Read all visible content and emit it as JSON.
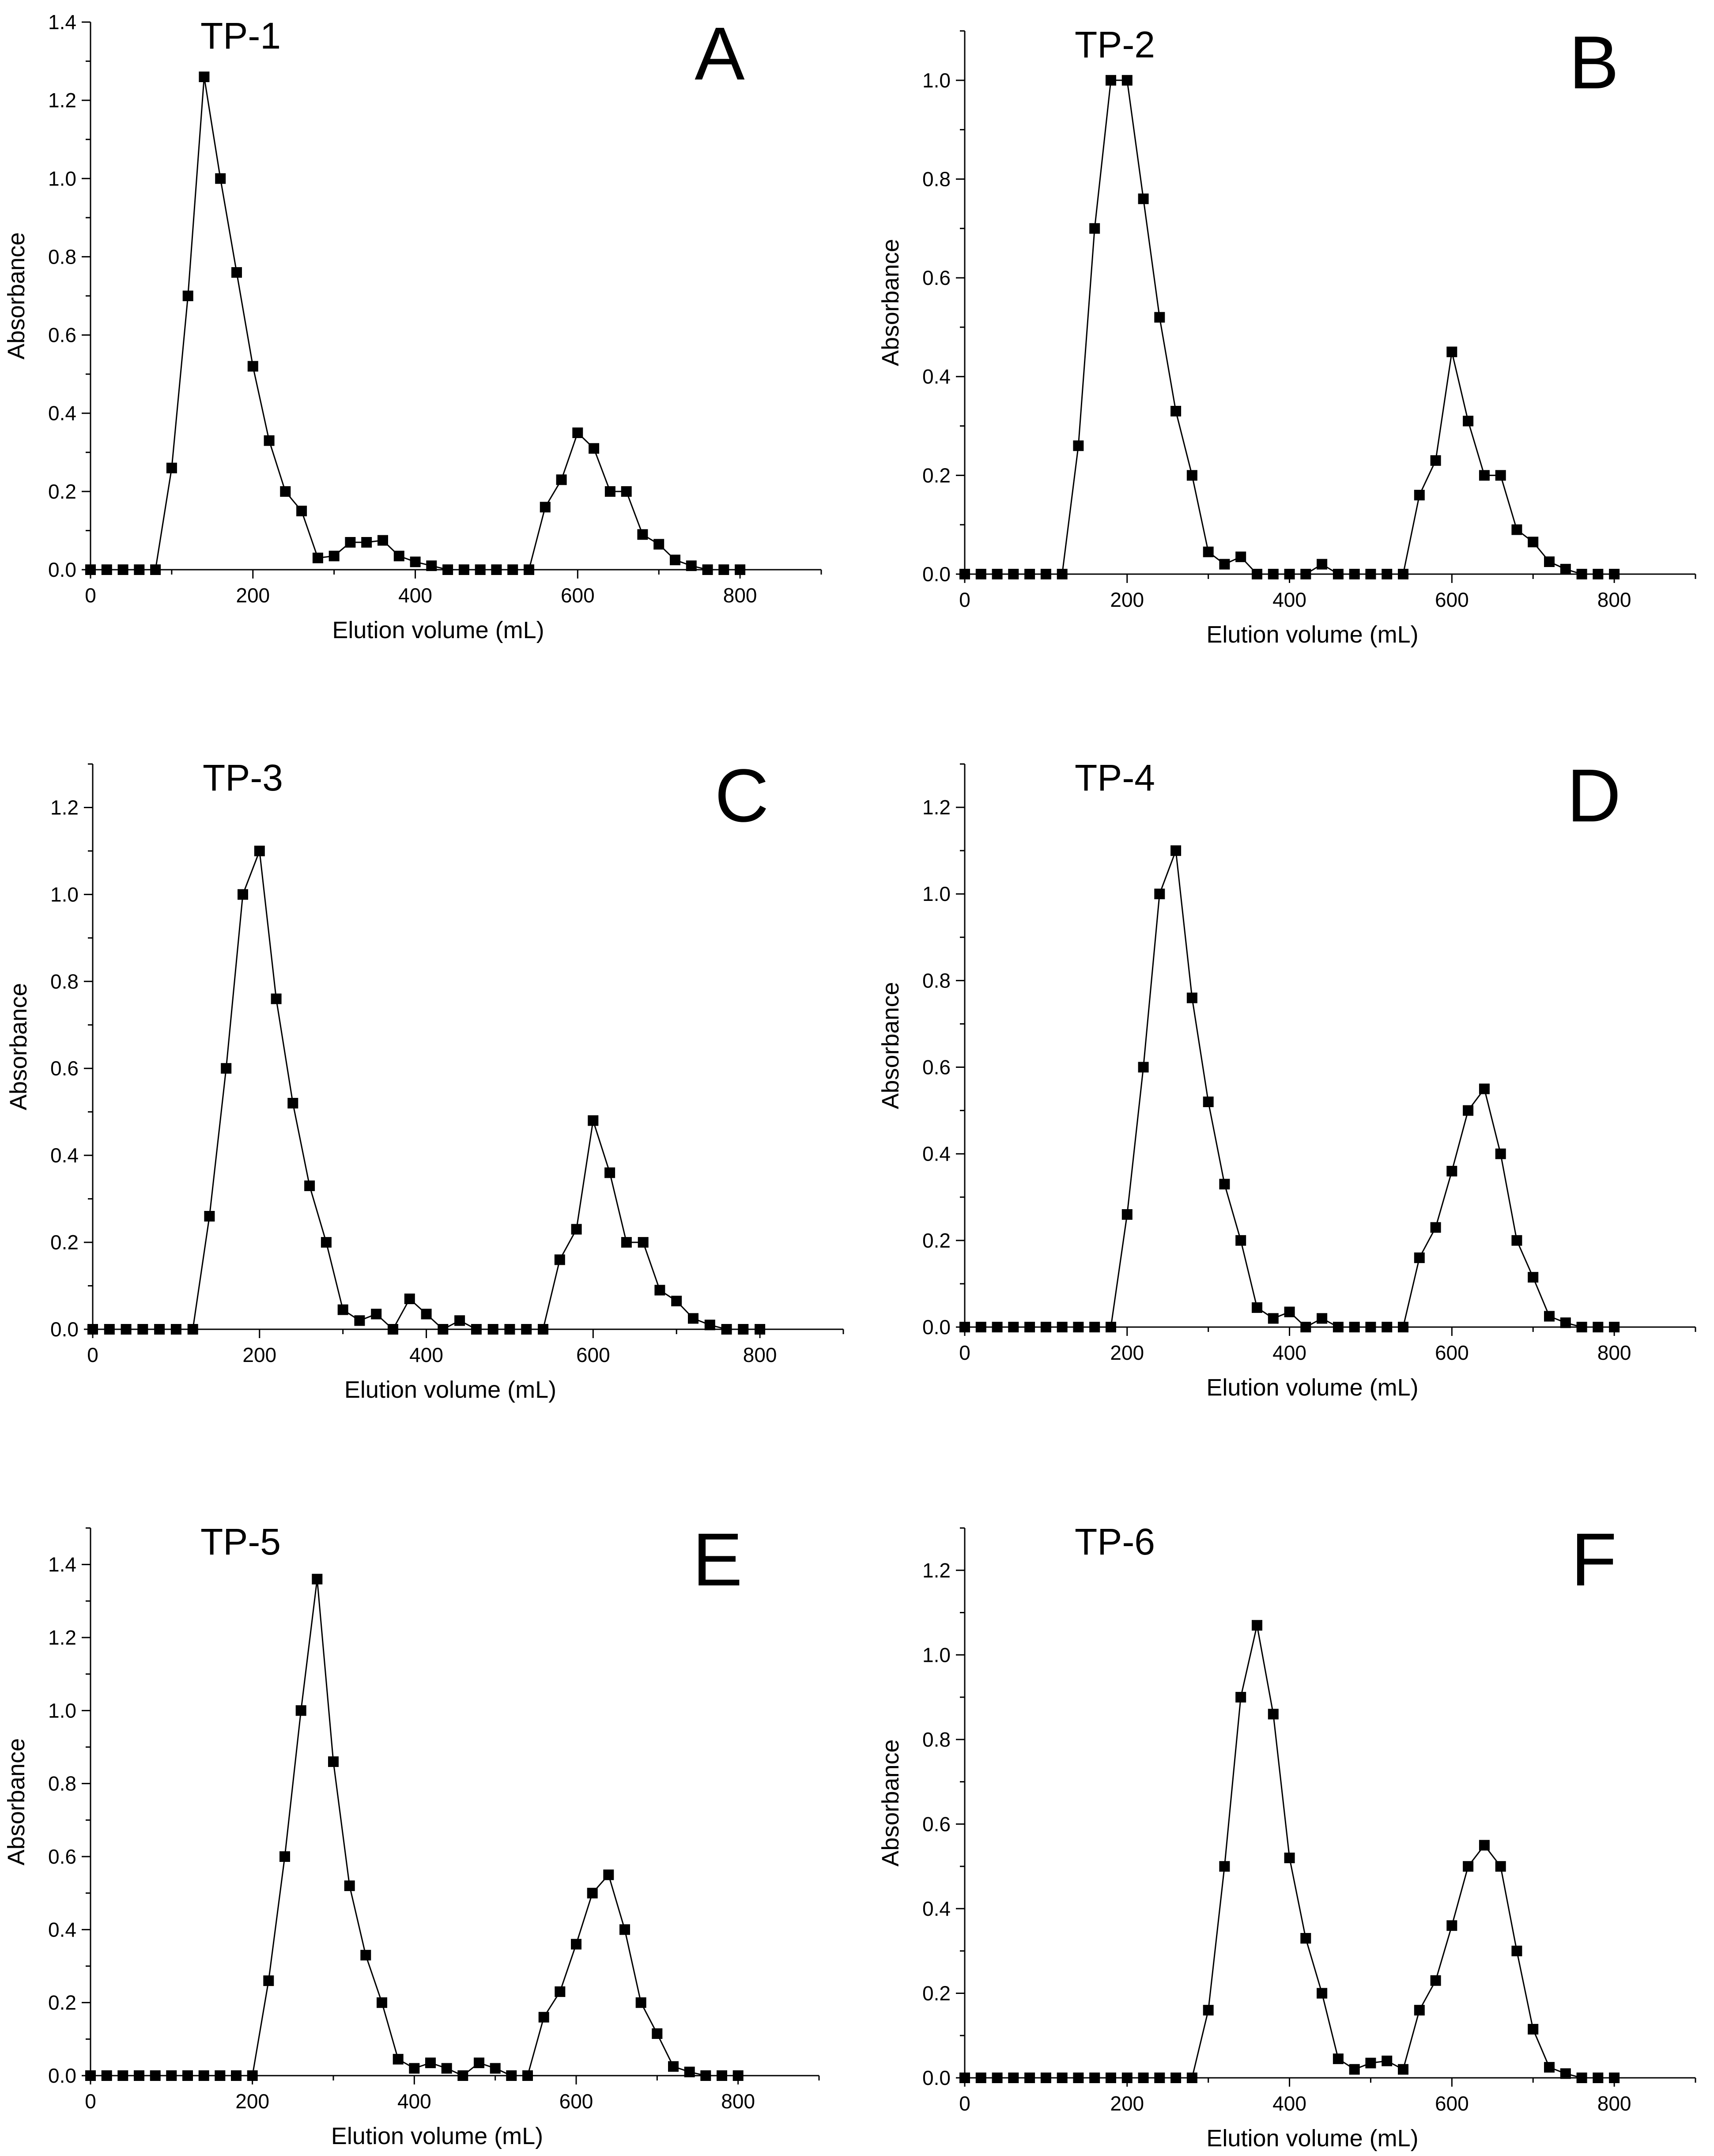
{
  "figure": {
    "colors": {
      "ink": "#000000",
      "background": "#ffffff"
    }
  },
  "chart_data": [
    {
      "type": "line",
      "panel_letter": "A",
      "title": "TP-1",
      "xlabel": "Elution volume (mL)",
      "ylabel": "Absorbance",
      "xlim": [
        0,
        900
      ],
      "ylim": [
        0,
        1.4
      ],
      "xticks": [
        0,
        200,
        400,
        600,
        800
      ],
      "xtick_labels": [
        "0",
        "200",
        "400",
        "600",
        "800"
      ],
      "yticks": [
        0,
        0.2,
        0.4,
        0.6,
        0.8,
        1.0,
        1.2,
        1.4
      ],
      "ytick_labels": [
        "0.0",
        "0.2",
        "0.4",
        "0.6",
        "0.8",
        "1.0",
        "1.2",
        "1.4"
      ],
      "marker": "square",
      "x": [
        0,
        20,
        40,
        60,
        80,
        100,
        120,
        140,
        160,
        180,
        200,
        220,
        240,
        260,
        280,
        300,
        320,
        340,
        360,
        380,
        400,
        420,
        440,
        460,
        480,
        500,
        520,
        540,
        560,
        580,
        600,
        620,
        640,
        660,
        680,
        700,
        720,
        740,
        760,
        780,
        800
      ],
      "y": [
        0,
        0,
        0,
        0,
        0,
        0.26,
        0.7,
        1.26,
        1.0,
        0.76,
        0.52,
        0.33,
        0.2,
        0.15,
        0.03,
        0.035,
        0.07,
        0.07,
        0.075,
        0.035,
        0.02,
        0.01,
        0,
        0,
        0,
        0,
        0,
        0,
        0.16,
        0.23,
        0.35,
        0.31,
        0.2,
        0.2,
        0.09,
        0.065,
        0.025,
        0.01,
        0,
        0,
        0
      ]
    },
    {
      "type": "line",
      "panel_letter": "B",
      "title": "TP-2",
      "xlabel": "Elution volume (mL)",
      "ylabel": "Absorbance",
      "xlim": [
        0,
        900
      ],
      "ylim": [
        0,
        1.1
      ],
      "xticks": [
        0,
        200,
        400,
        600,
        800
      ],
      "xtick_labels": [
        "0",
        "200",
        "400",
        "600",
        "800"
      ],
      "yticks": [
        0,
        0.2,
        0.4,
        0.6,
        0.8,
        1.0
      ],
      "ytick_labels": [
        "0.0",
        "0.2",
        "0.4",
        "0.6",
        "0.8",
        "1.0"
      ],
      "marker": "square",
      "x": [
        0,
        20,
        40,
        60,
        80,
        100,
        120,
        140,
        160,
        180,
        200,
        220,
        240,
        260,
        280,
        300,
        320,
        340,
        360,
        380,
        400,
        420,
        440,
        460,
        480,
        500,
        520,
        540,
        560,
        580,
        600,
        620,
        640,
        660,
        680,
        700,
        720,
        740,
        760,
        780,
        800
      ],
      "y": [
        0,
        0,
        0,
        0,
        0,
        0,
        0,
        0.26,
        0.7,
        1.0,
        1.0,
        0.76,
        0.52,
        0.33,
        0.2,
        0.045,
        0.02,
        0.035,
        0,
        0,
        0,
        0,
        0.02,
        0,
        0,
        0,
        0,
        0,
        0.16,
        0.23,
        0.45,
        0.31,
        0.2,
        0.2,
        0.09,
        0.065,
        0.025,
        0.01,
        0,
        0,
        0
      ]
    },
    {
      "type": "line",
      "panel_letter": "C",
      "title": "TP-3",
      "xlabel": "Elution volume (mL)",
      "ylabel": "Absorbance",
      "xlim": [
        0,
        900
      ],
      "ylim": [
        0,
        1.3
      ],
      "xticks": [
        0,
        200,
        400,
        600,
        800
      ],
      "xtick_labels": [
        "0",
        "200",
        "400",
        "600",
        "800"
      ],
      "yticks": [
        0,
        0.2,
        0.4,
        0.6,
        0.8,
        1.0,
        1.2
      ],
      "ytick_labels": [
        "0.0",
        "0.2",
        "0.4",
        "0.6",
        "0.8",
        "1.0",
        "1.2"
      ],
      "marker": "square",
      "x": [
        0,
        20,
        40,
        60,
        80,
        100,
        120,
        140,
        160,
        180,
        200,
        220,
        240,
        260,
        280,
        300,
        320,
        340,
        360,
        380,
        400,
        420,
        440,
        460,
        480,
        500,
        520,
        540,
        560,
        580,
        600,
        620,
        640,
        660,
        680,
        700,
        720,
        740,
        760,
        780,
        800
      ],
      "y": [
        0,
        0,
        0,
        0,
        0,
        0,
        0,
        0.26,
        0.6,
        1.0,
        1.1,
        0.76,
        0.52,
        0.33,
        0.2,
        0.045,
        0.02,
        0.035,
        0,
        0.07,
        0.035,
        0,
        0.02,
        0,
        0,
        0,
        0,
        0,
        0.16,
        0.23,
        0.48,
        0.36,
        0.2,
        0.2,
        0.09,
        0.065,
        0.025,
        0.01,
        0,
        0,
        0
      ]
    },
    {
      "type": "line",
      "panel_letter": "D",
      "title": "TP-4",
      "xlabel": "Elution volume (mL)",
      "ylabel": "Absorbance",
      "xlim": [
        0,
        900
      ],
      "ylim": [
        0,
        1.3
      ],
      "xticks": [
        0,
        200,
        400,
        600,
        800
      ],
      "xtick_labels": [
        "0",
        "200",
        "400",
        "600",
        "800"
      ],
      "yticks": [
        0,
        0.2,
        0.4,
        0.6,
        0.8,
        1.0,
        1.2
      ],
      "ytick_labels": [
        "0.0",
        "0.2",
        "0.4",
        "0.6",
        "0.8",
        "1.0",
        "1.2"
      ],
      "marker": "square",
      "x": [
        0,
        20,
        40,
        60,
        80,
        100,
        120,
        140,
        160,
        180,
        200,
        220,
        240,
        260,
        280,
        300,
        320,
        340,
        360,
        380,
        400,
        420,
        440,
        460,
        480,
        500,
        520,
        540,
        560,
        580,
        600,
        620,
        640,
        660,
        680,
        700,
        720,
        740,
        760,
        780,
        800
      ],
      "y": [
        0,
        0,
        0,
        0,
        0,
        0,
        0,
        0,
        0,
        0,
        0.26,
        0.6,
        1.0,
        1.1,
        0.76,
        0.52,
        0.33,
        0.2,
        0.045,
        0.02,
        0.035,
        0,
        0.02,
        0,
        0,
        0,
        0,
        0,
        0.16,
        0.23,
        0.36,
        0.5,
        0.55,
        0.4,
        0.2,
        0.115,
        0.025,
        0.01,
        0,
        0,
        0
      ]
    },
    {
      "type": "line",
      "panel_letter": "E",
      "title": "TP-5",
      "xlabel": "Elution volume (mL)",
      "ylabel": "Absorbance",
      "xlim": [
        0,
        900
      ],
      "ylim": [
        0,
        1.5
      ],
      "xticks": [
        0,
        200,
        400,
        600,
        800
      ],
      "xtick_labels": [
        "0",
        "200",
        "400",
        "600",
        "800"
      ],
      "yticks": [
        0,
        0.2,
        0.4,
        0.6,
        0.8,
        1.0,
        1.2,
        1.4
      ],
      "ytick_labels": [
        "0.0",
        "0.2",
        "0.4",
        "0.6",
        "0.8",
        "1.0",
        "1.2",
        "1.4"
      ],
      "marker": "square",
      "x": [
        0,
        20,
        40,
        60,
        80,
        100,
        120,
        140,
        160,
        180,
        200,
        220,
        240,
        260,
        280,
        300,
        320,
        340,
        360,
        380,
        400,
        420,
        440,
        460,
        480,
        500,
        520,
        540,
        560,
        580,
        600,
        620,
        640,
        660,
        680,
        700,
        720,
        740,
        760,
        780,
        800
      ],
      "y": [
        0,
        0,
        0,
        0,
        0,
        0,
        0,
        0,
        0,
        0,
        0,
        0.26,
        0.6,
        1.0,
        1.36,
        0.86,
        0.52,
        0.33,
        0.2,
        0.045,
        0.02,
        0.035,
        0.02,
        0,
        0.035,
        0.02,
        0,
        0,
        0.16,
        0.23,
        0.36,
        0.5,
        0.55,
        0.4,
        0.2,
        0.115,
        0.025,
        0.01,
        0,
        0,
        0
      ]
    },
    {
      "type": "line",
      "panel_letter": "F",
      "title": "TP-6",
      "xlabel": "Elution volume (mL)",
      "ylabel": "Absorbance",
      "xlim": [
        0,
        900
      ],
      "ylim": [
        0,
        1.3
      ],
      "xticks": [
        0,
        200,
        400,
        600,
        800
      ],
      "xtick_labels": [
        "0",
        "200",
        "400",
        "600",
        "800"
      ],
      "yticks": [
        0,
        0.2,
        0.4,
        0.6,
        0.8,
        1.0,
        1.2
      ],
      "ytick_labels": [
        "0.0",
        "0.2",
        "0.4",
        "0.6",
        "0.8",
        "1.0",
        "1.2"
      ],
      "marker": "square",
      "x": [
        0,
        20,
        40,
        60,
        80,
        100,
        120,
        140,
        160,
        180,
        200,
        220,
        240,
        260,
        280,
        300,
        320,
        340,
        360,
        380,
        400,
        420,
        440,
        460,
        480,
        500,
        520,
        540,
        560,
        580,
        600,
        620,
        640,
        660,
        680,
        700,
        720,
        740,
        760,
        780,
        800
      ],
      "y": [
        0,
        0,
        0,
        0,
        0,
        0,
        0,
        0,
        0,
        0,
        0,
        0,
        0,
        0,
        0,
        0.16,
        0.5,
        0.9,
        1.07,
        0.86,
        0.52,
        0.33,
        0.2,
        0.045,
        0.02,
        0.035,
        0.04,
        0.02,
        0.16,
        0.23,
        0.36,
        0.5,
        0.55,
        0.5,
        0.3,
        0.115,
        0.025,
        0.01,
        0,
        0,
        0
      ]
    }
  ]
}
